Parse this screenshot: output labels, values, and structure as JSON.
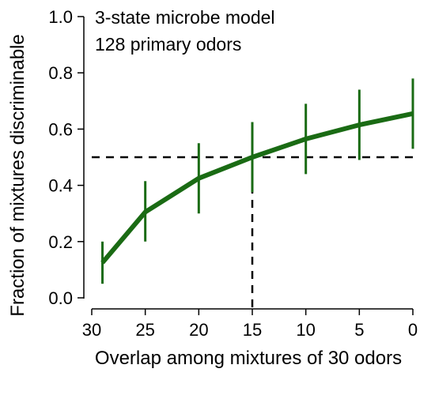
{
  "chart_data": {
    "type": "line",
    "annotations": [
      "3-state microbe model",
      "128 primary odors"
    ],
    "xlabel": "Overlap among mixtures of 30 odors",
    "ylabel": "Fraction of mixtures discriminable",
    "x_reversed": true,
    "xlim": [
      30,
      0
    ],
    "ylim": [
      0,
      1.0
    ],
    "xticks": [
      30,
      25,
      20,
      15,
      10,
      5,
      0
    ],
    "yticks": [
      0.0,
      0.2,
      0.4,
      0.6,
      0.8,
      1.0
    ],
    "xtick_labels": [
      "30",
      "25",
      "20",
      "15",
      "10",
      "5",
      "0"
    ],
    "ytick_labels": [
      "0.0",
      "0.2",
      "0.4",
      "0.6",
      "0.8",
      "1.0"
    ],
    "grid": false,
    "series": [
      {
        "color": "#1a6b14",
        "points": [
          {
            "x": 29,
            "y": 0.125,
            "err_low": 0.05,
            "err_high": 0.2
          },
          {
            "x": 25,
            "y": 0.305,
            "err_low": 0.2,
            "err_high": 0.415
          },
          {
            "x": 20,
            "y": 0.425,
            "err_low": 0.3,
            "err_high": 0.55
          },
          {
            "x": 15,
            "y": 0.5,
            "err_low": 0.375,
            "err_high": 0.625
          },
          {
            "x": 10,
            "y": 0.565,
            "err_low": 0.44,
            "err_high": 0.69
          },
          {
            "x": 5,
            "y": 0.615,
            "err_low": 0.49,
            "err_high": 0.74
          },
          {
            "x": 0,
            "y": 0.655,
            "err_low": 0.53,
            "err_high": 0.78
          }
        ]
      }
    ],
    "reference_lines": {
      "horizontal_y": 0.5,
      "vertical_x": 15,
      "style": "dashed",
      "color": "#000000"
    }
  }
}
